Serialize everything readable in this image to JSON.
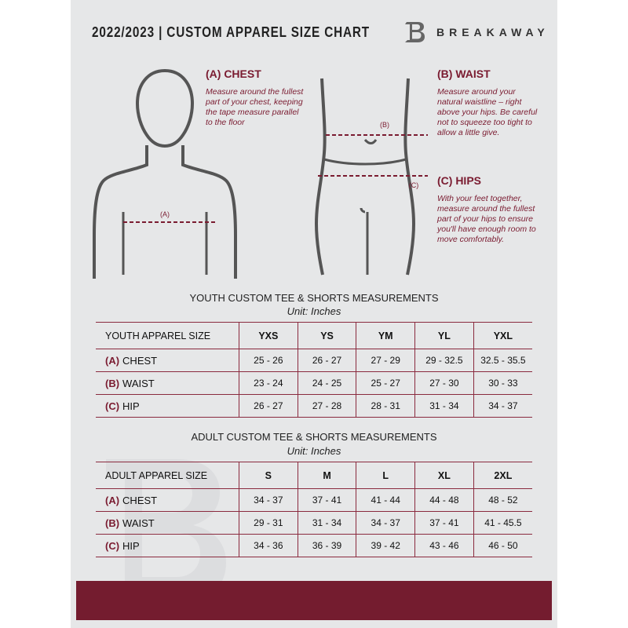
{
  "header": {
    "title": "2022/2023  |  CUSTOM APPAREL SIZE CHART",
    "brand": "BREAKAWAY",
    "logo_letter": "B"
  },
  "measures": {
    "chest": {
      "heading": "(A) CHEST",
      "label": "(A)",
      "text": "Measure around the fullest part of your chest, keeping the tape measure parallel to the floor"
    },
    "waist": {
      "heading": "(B) WAIST",
      "label": "(B)",
      "text": "Measure around your natural waistline – right above your hips. Be careful not to squeeze too tight to allow a little give."
    },
    "hips": {
      "heading": "(C) HIPS",
      "label": "(C)",
      "text": "With your feet together, measure around the fullest part of your hips to ensure you'll have enough room to move comfortably."
    }
  },
  "youth": {
    "title": "YOUTH CUSTOM TEE & SHORTS MEASUREMENTS",
    "unit": "Unit: Inches",
    "header": "YOUTH APPAREL SIZE",
    "sizes": [
      "YXS",
      "YS",
      "YM",
      "YL",
      "YXL"
    ],
    "rows": [
      {
        "tag": "(A)",
        "name": "CHEST",
        "values": [
          "25 - 26",
          "26 - 27",
          "27 - 29",
          "29 - 32.5",
          "32.5 - 35.5"
        ]
      },
      {
        "tag": "(B)",
        "name": "WAIST",
        "values": [
          "23 - 24",
          "24 - 25",
          "25 - 27",
          "27 - 30",
          "30 - 33"
        ]
      },
      {
        "tag": "(C)",
        "name": "HIP",
        "values": [
          "26 - 27",
          "27 - 28",
          "28 - 31",
          "31 - 34",
          "34 - 37"
        ]
      }
    ]
  },
  "adult": {
    "title": "ADULT CUSTOM TEE & SHORTS MEASUREMENTS",
    "unit": "Unit: Inches",
    "header": "ADULT APPAREL SIZE",
    "sizes": [
      "S",
      "M",
      "L",
      "XL",
      "2XL"
    ],
    "rows": [
      {
        "tag": "(A)",
        "name": "CHEST",
        "values": [
          "34 - 37",
          "37 - 41",
          "41 - 44",
          "44 - 48",
          "48 - 52"
        ]
      },
      {
        "tag": "(B)",
        "name": "WAIST",
        "values": [
          "29 - 31",
          "31 - 34",
          "34 - 37",
          "37 - 41",
          "41 - 45.5"
        ]
      },
      {
        "tag": "(C)",
        "name": "HIP",
        "values": [
          "34 - 36",
          "36 - 39",
          "39 - 42",
          "43 - 46",
          "46 - 50"
        ]
      }
    ]
  },
  "colors": {
    "accent": "#741c2f",
    "background": "#e6e7e8"
  }
}
